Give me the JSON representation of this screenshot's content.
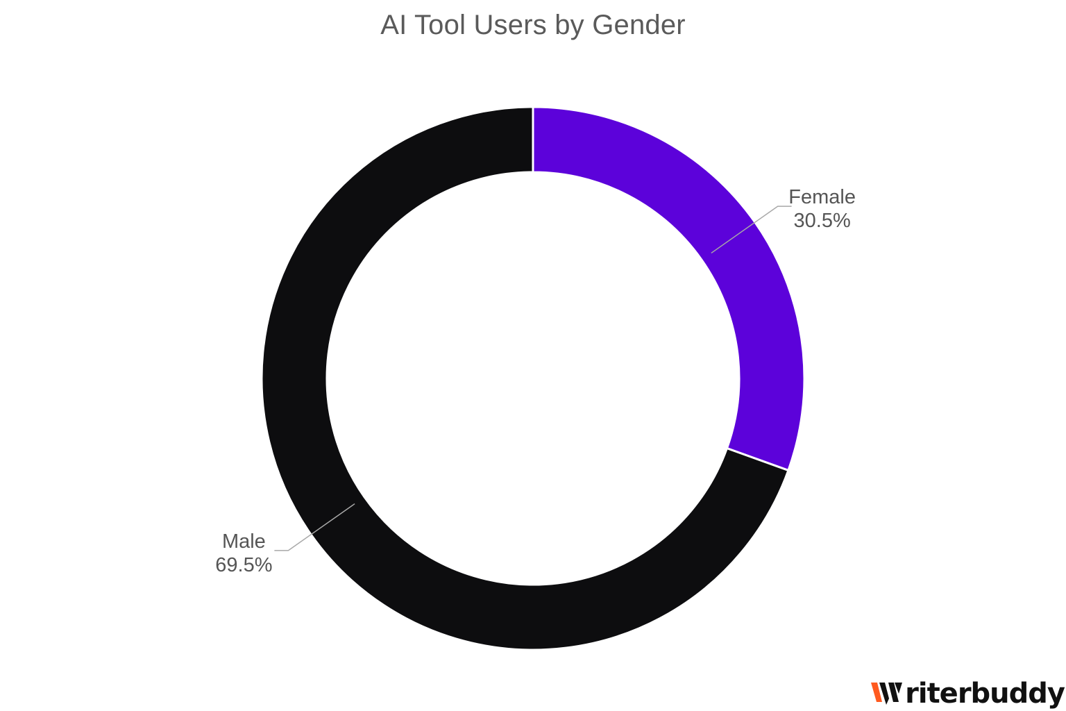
{
  "chart_data": {
    "type": "pie",
    "title": "AI Tool Users by Gender",
    "donut": true,
    "start_angle_deg": 0,
    "direction": "clockwise",
    "slices": [
      {
        "label": "Female",
        "value": 30.5,
        "value_label": "30.5%",
        "color": "#5c02da",
        "label_side": "right"
      },
      {
        "label": "Male",
        "value": 69.5,
        "value_label": "69.5%",
        "color": "#0d0d0f",
        "label_side": "left"
      }
    ]
  },
  "logo": {
    "text": "riterbuddy",
    "brand_text": "Writerbuddy",
    "mark_colors": [
      "#ff5a1f",
      "#111111"
    ]
  }
}
